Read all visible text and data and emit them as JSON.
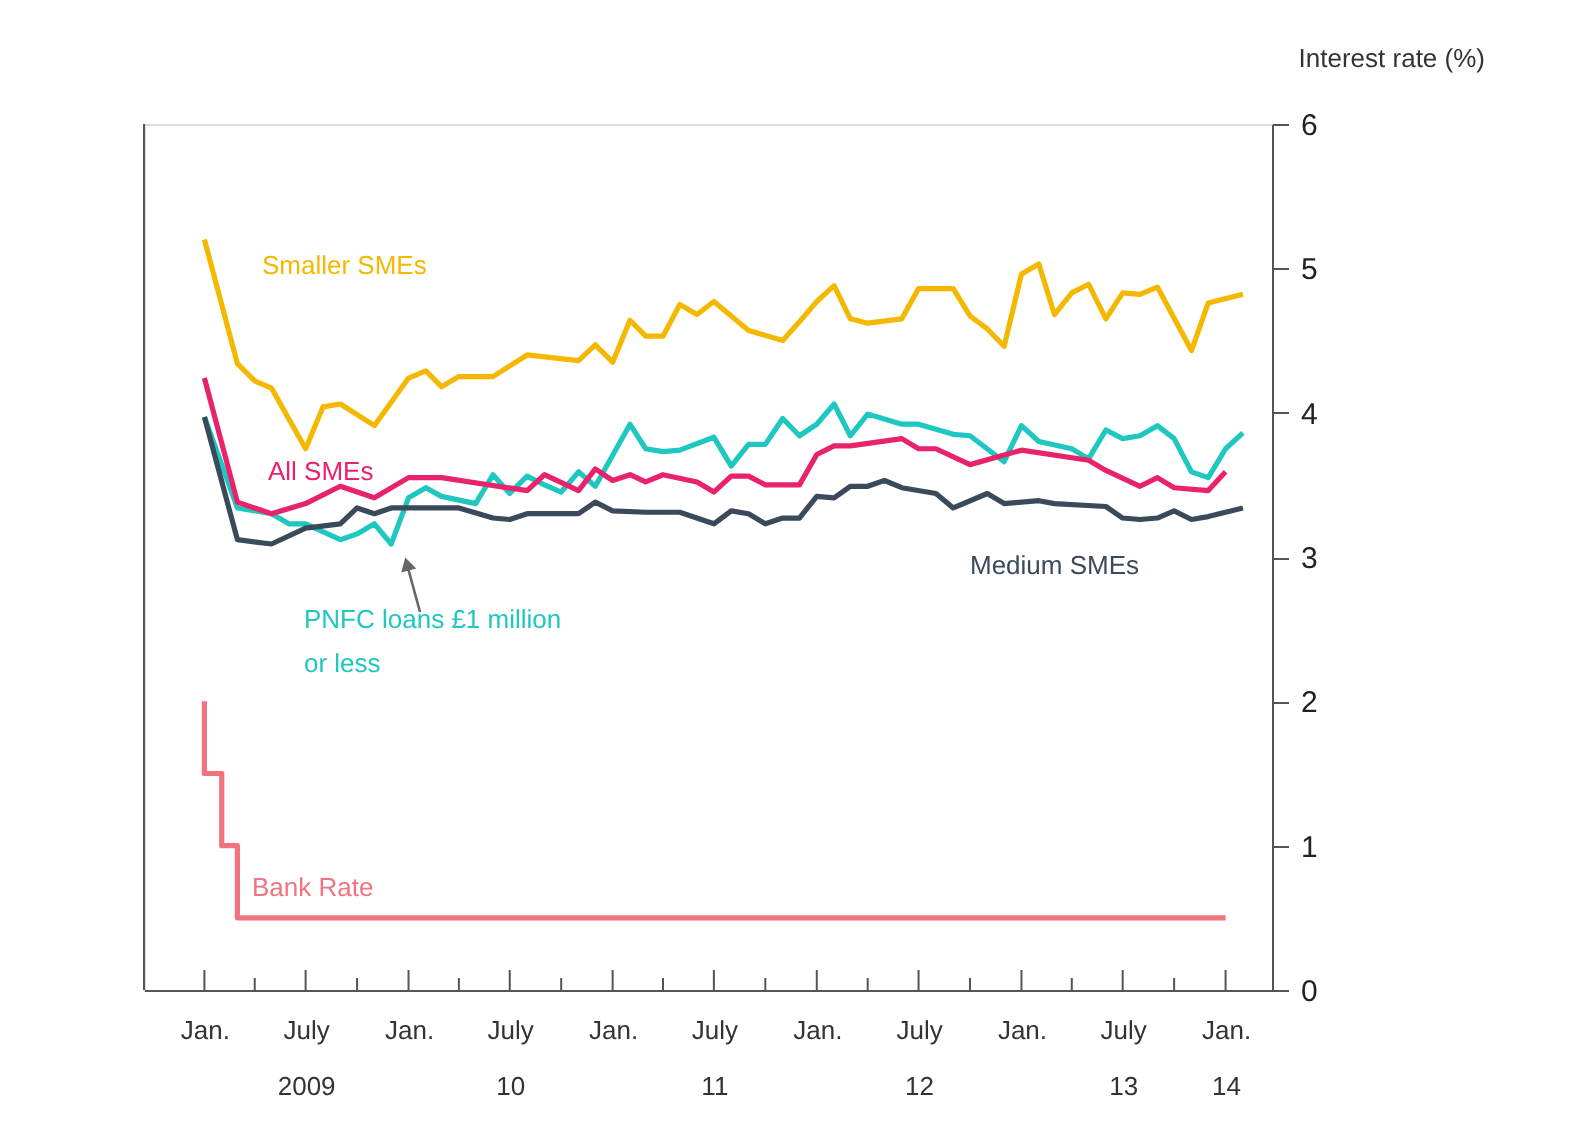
{
  "chart_data": {
    "type": "line",
    "ylabel": "Interest rate (%)",
    "xlim": [
      "2008-09-15",
      "2014-03-25"
    ],
    "xticks": [
      {
        "value": "2009-01",
        "label": "Jan."
      },
      {
        "value": "2009-04",
        "label": null
      },
      {
        "value": "2009-07",
        "label": "July\n2009"
      },
      {
        "value": "2009-10",
        "label": null
      },
      {
        "value": "2010-01",
        "label": "Jan."
      },
      {
        "value": "2010-04",
        "label": null
      },
      {
        "value": "2010-07",
        "label": "July\n10"
      },
      {
        "value": "2010-10",
        "label": null
      },
      {
        "value": "2011-01",
        "label": "Jan."
      },
      {
        "value": "2011-04",
        "label": null
      },
      {
        "value": "2011-07",
        "label": "July\n11"
      },
      {
        "value": "2011-10",
        "label": null
      },
      {
        "value": "2012-01",
        "label": "Jan."
      },
      {
        "value": "2012-04",
        "label": null
      },
      {
        "value": "2012-07",
        "label": "July\n12"
      },
      {
        "value": "2012-10",
        "label": null
      },
      {
        "value": "2013-01",
        "label": "Jan."
      },
      {
        "value": "2013-04",
        "label": null
      },
      {
        "value": "2013-07",
        "label": "July\n13"
      },
      {
        "value": "2013-10",
        "label": null
      },
      {
        "value": "2014-01",
        "label": "Jan.\n14"
      }
    ],
    "ylim": [
      0,
      6
    ],
    "yticks": [
      0,
      1,
      2,
      3,
      4,
      5,
      6
    ],
    "grid": false,
    "legend": false,
    "series": [
      {
        "name": "Smaller SMEs",
        "color": "#f5b800",
        "x": [
          "2009-01",
          "2009-03",
          "2009-04",
          "2009-05",
          "2009-07",
          "2009-08",
          "2009-09",
          "2009-11",
          "2010-01",
          "2010-02",
          "2010-03",
          "2010-04",
          "2010-06",
          "2010-08",
          "2010-11",
          "2010-12",
          "2011-01",
          "2011-02",
          "2011-03",
          "2011-04",
          "2011-05",
          "2011-06",
          "2011-07",
          "2011-09",
          "2011-11",
          "2011-12",
          "2012-01",
          "2012-02",
          "2012-03",
          "2012-04",
          "2012-06",
          "2012-07",
          "2012-09",
          "2012-10",
          "2012-11",
          "2012-12",
          "2013-01",
          "2013-02",
          "2013-03",
          "2013-04",
          "2013-05",
          "2013-06",
          "2013-07",
          "2013-08",
          "2013-09",
          "2013-11",
          "2013-12",
          "2014-02"
        ],
        "values": [
          5.2,
          4.34,
          4.22,
          4.17,
          3.75,
          4.04,
          4.06,
          3.91,
          4.24,
          4.29,
          4.18,
          4.25,
          4.25,
          4.4,
          4.36,
          4.47,
          4.35,
          4.64,
          4.53,
          4.53,
          4.75,
          4.68,
          4.77,
          4.57,
          4.5,
          4.63,
          4.77,
          4.88,
          4.65,
          4.62,
          4.65,
          4.86,
          4.86,
          4.67,
          4.58,
          4.46,
          4.96,
          5.03,
          4.68,
          4.83,
          4.89,
          4.65,
          4.83,
          4.82,
          4.87,
          4.43,
          4.76,
          4.82
        ]
      },
      {
        "name": "PNFC loans £1 million or less",
        "color": "#1fc7c1",
        "x": [
          "2009-01",
          "2009-03",
          "2009-05",
          "2009-06",
          "2009-07",
          "2009-09",
          "2009-10",
          "2009-11",
          "2009-12",
          "2010-01",
          "2010-02",
          "2010-03",
          "2010-05",
          "2010-06",
          "2010-07",
          "2010-08",
          "2010-09",
          "2010-10",
          "2010-11",
          "2010-12",
          "2011-02",
          "2011-03",
          "2011-04",
          "2011-05",
          "2011-07",
          "2011-08",
          "2011-09",
          "2011-10",
          "2011-11",
          "2011-12",
          "2012-01",
          "2012-02",
          "2012-03",
          "2012-04",
          "2012-06",
          "2012-07",
          "2012-09",
          "2012-10",
          "2012-12",
          "2013-01",
          "2013-02",
          "2013-04",
          "2013-05",
          "2013-06",
          "2013-07",
          "2013-08",
          "2013-09",
          "2013-10",
          "2013-11",
          "2013-12",
          "2014-01",
          "2014-02"
        ],
        "values": [
          3.97,
          3.34,
          3.3,
          3.23,
          3.23,
          3.12,
          3.16,
          3.23,
          3.09,
          3.41,
          3.48,
          3.42,
          3.37,
          3.57,
          3.44,
          3.56,
          3.5,
          3.45,
          3.59,
          3.49,
          3.92,
          3.75,
          3.73,
          3.74,
          3.83,
          3.63,
          3.78,
          3.78,
          3.96,
          3.84,
          3.92,
          4.06,
          3.84,
          3.99,
          3.92,
          3.92,
          3.85,
          3.84,
          3.66,
          3.91,
          3.8,
          3.75,
          3.68,
          3.88,
          3.82,
          3.84,
          3.91,
          3.82,
          3.59,
          3.55,
          3.75,
          3.86
        ]
      },
      {
        "name": "All SMEs",
        "color": "#e8236b",
        "x": [
          "2009-01",
          "2009-03",
          "2009-05",
          "2009-07",
          "2009-09",
          "2009-11",
          "2010-01",
          "2010-03",
          "2010-08",
          "2010-09",
          "2010-11",
          "2010-12",
          "2011-01",
          "2011-02",
          "2011-03",
          "2011-04",
          "2011-06",
          "2011-07",
          "2011-08",
          "2011-09",
          "2011-10",
          "2011-12",
          "2012-01",
          "2012-02",
          "2012-03",
          "2012-06",
          "2012-07",
          "2012-08",
          "2012-10",
          "2013-01",
          "2013-05",
          "2013-06",
          "2013-08",
          "2013-09",
          "2013-10",
          "2013-12",
          "2014-01"
        ],
        "values": [
          4.24,
          3.38,
          3.3,
          3.37,
          3.49,
          3.41,
          3.55,
          3.55,
          3.46,
          3.57,
          3.46,
          3.61,
          3.53,
          3.57,
          3.52,
          3.57,
          3.52,
          3.45,
          3.56,
          3.56,
          3.5,
          3.5,
          3.71,
          3.77,
          3.77,
          3.82,
          3.75,
          3.75,
          3.64,
          3.74,
          3.67,
          3.6,
          3.49,
          3.55,
          3.48,
          3.46,
          3.59
        ]
      },
      {
        "name": "Medium SMEs",
        "color": "#3b4a5a",
        "x": [
          "2009-01",
          "2009-03",
          "2009-05",
          "2009-07",
          "2009-09",
          "2009-10",
          "2009-11",
          "2009-12",
          "2010-04",
          "2010-06",
          "2010-07",
          "2010-08",
          "2010-11",
          "2010-12",
          "2011-01",
          "2011-03",
          "2011-05",
          "2011-07",
          "2011-08",
          "2011-09",
          "2011-10",
          "2011-11",
          "2011-12",
          "2012-01",
          "2012-02",
          "2012-03",
          "2012-04",
          "2012-05",
          "2012-06",
          "2012-08",
          "2012-09",
          "2012-11",
          "2012-12",
          "2013-02",
          "2013-03",
          "2013-06",
          "2013-07",
          "2013-08",
          "2013-09",
          "2013-10",
          "2013-11",
          "2013-12",
          "2014-02"
        ],
        "values": [
          3.97,
          3.12,
          3.09,
          3.2,
          3.23,
          3.34,
          3.3,
          3.34,
          3.34,
          3.27,
          3.26,
          3.3,
          3.3,
          3.38,
          3.32,
          3.31,
          3.31,
          3.23,
          3.32,
          3.3,
          3.23,
          3.27,
          3.27,
          3.42,
          3.41,
          3.49,
          3.49,
          3.53,
          3.48,
          3.44,
          3.34,
          3.44,
          3.37,
          3.39,
          3.37,
          3.35,
          3.27,
          3.26,
          3.27,
          3.32,
          3.26,
          3.28,
          3.34
        ]
      },
      {
        "name": "Bank Rate",
        "type": "step",
        "color": "#f0737f",
        "x": [
          "2009-01",
          "2009-02",
          "2009-03",
          "2009-04",
          "2014-01"
        ],
        "values": [
          2.0,
          1.5,
          1.0,
          0.5,
          0.5
        ]
      }
    ]
  }
}
